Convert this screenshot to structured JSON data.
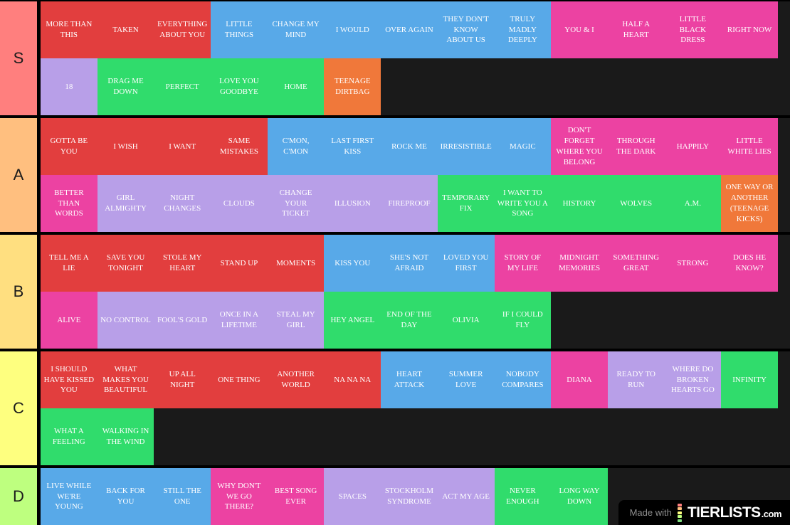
{
  "watermark": {
    "made_with": "Made with",
    "brand": "TIERLISTS",
    "brand_suffix": ".com",
    "logo_colors": [
      "#ff7f7e",
      "#ffbf7f",
      "#ffff7f",
      "#bfff7f",
      "#7fdd7f"
    ]
  },
  "item_colors": {
    "red": "#e23e3e",
    "blue": "#58a9e8",
    "pink": "#ec42a2",
    "purple": "#b89fe8",
    "green": "#30dc6c",
    "orange": "#f0783a"
  },
  "tiers": [
    {
      "label": "S",
      "label_color": "#ff7f7e",
      "items": [
        {
          "text": "MORE THAN THIS",
          "color": "red"
        },
        {
          "text": "TAKEN",
          "color": "red"
        },
        {
          "text": "EVERYTHING ABOUT YOU",
          "color": "red"
        },
        {
          "text": "LITTLE THINGS",
          "color": "blue"
        },
        {
          "text": "CHANGE MY MIND",
          "color": "blue"
        },
        {
          "text": "I WOULD",
          "color": "blue"
        },
        {
          "text": "OVER AGAIN",
          "color": "blue"
        },
        {
          "text": "THEY DON'T KNOW ABOUT US",
          "color": "blue"
        },
        {
          "text": "TRULY MADLY DEEPLY",
          "color": "blue"
        },
        {
          "text": "YOU & I",
          "color": "pink"
        },
        {
          "text": "HALF A HEART",
          "color": "pink"
        },
        {
          "text": "LITTLE BLACK DRESS",
          "color": "pink"
        },
        {
          "text": "RIGHT NOW",
          "color": "pink"
        },
        {
          "text": "18",
          "color": "purple"
        },
        {
          "text": "DRAG ME DOWN",
          "color": "green"
        },
        {
          "text": "PERFECT",
          "color": "green"
        },
        {
          "text": "LOVE YOU GOODBYE",
          "color": "green"
        },
        {
          "text": "HOME",
          "color": "green"
        },
        {
          "text": "TEENAGE DIRTBAG",
          "color": "orange"
        }
      ]
    },
    {
      "label": "A",
      "label_color": "#ffbf7f",
      "items": [
        {
          "text": "GOTTA BE YOU",
          "color": "red"
        },
        {
          "text": "I WISH",
          "color": "red"
        },
        {
          "text": "I WANT",
          "color": "red"
        },
        {
          "text": "SAME MISTAKES",
          "color": "red"
        },
        {
          "text": "C'MON, C'MON",
          "color": "blue"
        },
        {
          "text": "LAST FIRST KISS",
          "color": "blue"
        },
        {
          "text": "ROCK ME",
          "color": "blue"
        },
        {
          "text": "IRRESISTIBLE",
          "color": "blue"
        },
        {
          "text": "MAGIC",
          "color": "blue"
        },
        {
          "text": "DON'T FORGET WHERE YOU BELONG",
          "color": "pink"
        },
        {
          "text": "THROUGH THE DARK",
          "color": "pink"
        },
        {
          "text": "HAPPILY",
          "color": "pink"
        },
        {
          "text": "LITTLE WHITE LIES",
          "color": "pink"
        },
        {
          "text": "BETTER THAN WORDS",
          "color": "pink"
        },
        {
          "text": "GIRL ALMIGHTY",
          "color": "purple"
        },
        {
          "text": "NIGHT CHANGES",
          "color": "purple"
        },
        {
          "text": "CLOUDS",
          "color": "purple"
        },
        {
          "text": "CHANGE YOUR TICKET",
          "color": "purple"
        },
        {
          "text": "ILLUSION",
          "color": "purple"
        },
        {
          "text": "FIREPROOF",
          "color": "purple"
        },
        {
          "text": "TEMPORARY FIX",
          "color": "green"
        },
        {
          "text": "I WANT TO WRITE YOU A SONG",
          "color": "green"
        },
        {
          "text": "HISTORY",
          "color": "green"
        },
        {
          "text": "WOLVES",
          "color": "green"
        },
        {
          "text": "A.M.",
          "color": "green"
        },
        {
          "text": "ONE WAY OR ANOTHER (TEENAGE KICKS)",
          "color": "orange"
        }
      ]
    },
    {
      "label": "B",
      "label_color": "#ffdf80",
      "items": [
        {
          "text": "TELL ME A LIE",
          "color": "red"
        },
        {
          "text": "SAVE YOU TONIGHT",
          "color": "red"
        },
        {
          "text": "STOLE MY HEART",
          "color": "red"
        },
        {
          "text": "STAND UP",
          "color": "red"
        },
        {
          "text": "MOMENTS",
          "color": "red"
        },
        {
          "text": "KISS YOU",
          "color": "blue"
        },
        {
          "text": "SHE'S NOT AFRAID",
          "color": "blue"
        },
        {
          "text": "LOVED YOU FIRST",
          "color": "blue"
        },
        {
          "text": "STORY OF MY LIFE",
          "color": "pink"
        },
        {
          "text": "MIDNIGHT MEMORIES",
          "color": "pink"
        },
        {
          "text": "SOMETHING GREAT",
          "color": "pink"
        },
        {
          "text": "STRONG",
          "color": "pink"
        },
        {
          "text": "DOES HE KNOW?",
          "color": "pink"
        },
        {
          "text": "ALIVE",
          "color": "pink"
        },
        {
          "text": "NO CONTROL",
          "color": "purple"
        },
        {
          "text": "FOOL'S GOLD",
          "color": "purple"
        },
        {
          "text": "ONCE IN A LIFETIME",
          "color": "purple"
        },
        {
          "text": "STEAL MY GIRL",
          "color": "purple"
        },
        {
          "text": "HEY ANGEL",
          "color": "green"
        },
        {
          "text": "END OF THE DAY",
          "color": "green"
        },
        {
          "text": "OLIVIA",
          "color": "green"
        },
        {
          "text": "IF I COULD FLY",
          "color": "green"
        }
      ]
    },
    {
      "label": "C",
      "label_color": "#feff7f",
      "items": [
        {
          "text": "I SHOULD HAVE KISSED YOU",
          "color": "red"
        },
        {
          "text": "WHAT MAKES YOU BEAUTIFUL",
          "color": "red"
        },
        {
          "text": "UP ALL NIGHT",
          "color": "red"
        },
        {
          "text": "ONE THING",
          "color": "red"
        },
        {
          "text": "ANOTHER WORLD",
          "color": "red"
        },
        {
          "text": "NA NA NA",
          "color": "red"
        },
        {
          "text": "HEART ATTACK",
          "color": "blue"
        },
        {
          "text": "SUMMER LOVE",
          "color": "blue"
        },
        {
          "text": "NOBODY COMPARES",
          "color": "blue"
        },
        {
          "text": "DIANA",
          "color": "pink"
        },
        {
          "text": "READY TO RUN",
          "color": "purple"
        },
        {
          "text": "WHERE DO BROKEN HEARTS GO",
          "color": "purple"
        },
        {
          "text": "INFINITY",
          "color": "green"
        },
        {
          "text": "WHAT A FEELING",
          "color": "green"
        },
        {
          "text": "WALKING IN THE WIND",
          "color": "green"
        }
      ]
    },
    {
      "label": "D",
      "label_color": "#beff7f",
      "items": [
        {
          "text": "LIVE WHILE WE'RE YOUNG",
          "color": "blue"
        },
        {
          "text": "BACK FOR YOU",
          "color": "blue"
        },
        {
          "text": "STILL THE ONE",
          "color": "blue"
        },
        {
          "text": "WHY DON'T WE GO THERE?",
          "color": "pink"
        },
        {
          "text": "BEST SONG EVER",
          "color": "pink"
        },
        {
          "text": "SPACES",
          "color": "purple"
        },
        {
          "text": "STOCKHOLM SYNDROME",
          "color": "purple"
        },
        {
          "text": "ACT MY AGE",
          "color": "purple"
        },
        {
          "text": "NEVER ENOUGH",
          "color": "green"
        },
        {
          "text": "LONG WAY DOWN",
          "color": "green"
        }
      ]
    }
  ]
}
